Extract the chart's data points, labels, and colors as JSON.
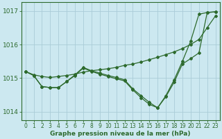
{
  "xlabel": "Graphe pression niveau de la mer (hPa)",
  "bg_color": "#cce8f0",
  "grid_color": "#aaccd8",
  "line_color": "#2d6a2d",
  "xlim_min": -0.5,
  "xlim_max": 23.5,
  "ylim_min": 1013.75,
  "ylim_max": 1017.25,
  "yticks": [
    1014,
    1015,
    1016,
    1017
  ],
  "xticks": [
    0,
    1,
    2,
    3,
    4,
    5,
    6,
    7,
    8,
    9,
    10,
    11,
    12,
    13,
    14,
    15,
    16,
    17,
    18,
    19,
    20,
    21,
    22,
    23
  ],
  "line1": [
    1015.2,
    1015.1,
    1015.05,
    1015.02,
    1015.05,
    1015.08,
    1015.12,
    1015.18,
    1015.22,
    1015.25,
    1015.28,
    1015.32,
    1015.38,
    1015.42,
    1015.48,
    1015.55,
    1015.62,
    1015.7,
    1015.78,
    1015.88,
    1016.0,
    1016.15,
    1016.5,
    1016.85
  ],
  "line2": [
    1015.2,
    1015.08,
    1014.75,
    1014.72,
    1014.72,
    1014.9,
    1015.08,
    1015.3,
    1015.2,
    1015.12,
    1015.05,
    1014.98,
    1014.92,
    1014.65,
    1014.42,
    1014.22,
    1014.12,
    1014.48,
    1014.95,
    1015.5,
    1016.1,
    1016.9,
    1016.95,
    1016.97
  ],
  "line3": [
    1015.2,
    1015.08,
    1014.75,
    1014.72,
    1014.72,
    1014.9,
    1015.1,
    1015.32,
    1015.22,
    1015.15,
    1015.08,
    1015.02,
    1014.95,
    1014.68,
    1014.48,
    1014.28,
    1014.12,
    1014.45,
    1014.88,
    1015.42,
    1015.58,
    1015.75,
    1016.95,
    1016.97
  ],
  "marker": "D",
  "markersize": 2.0,
  "linewidth": 0.9
}
